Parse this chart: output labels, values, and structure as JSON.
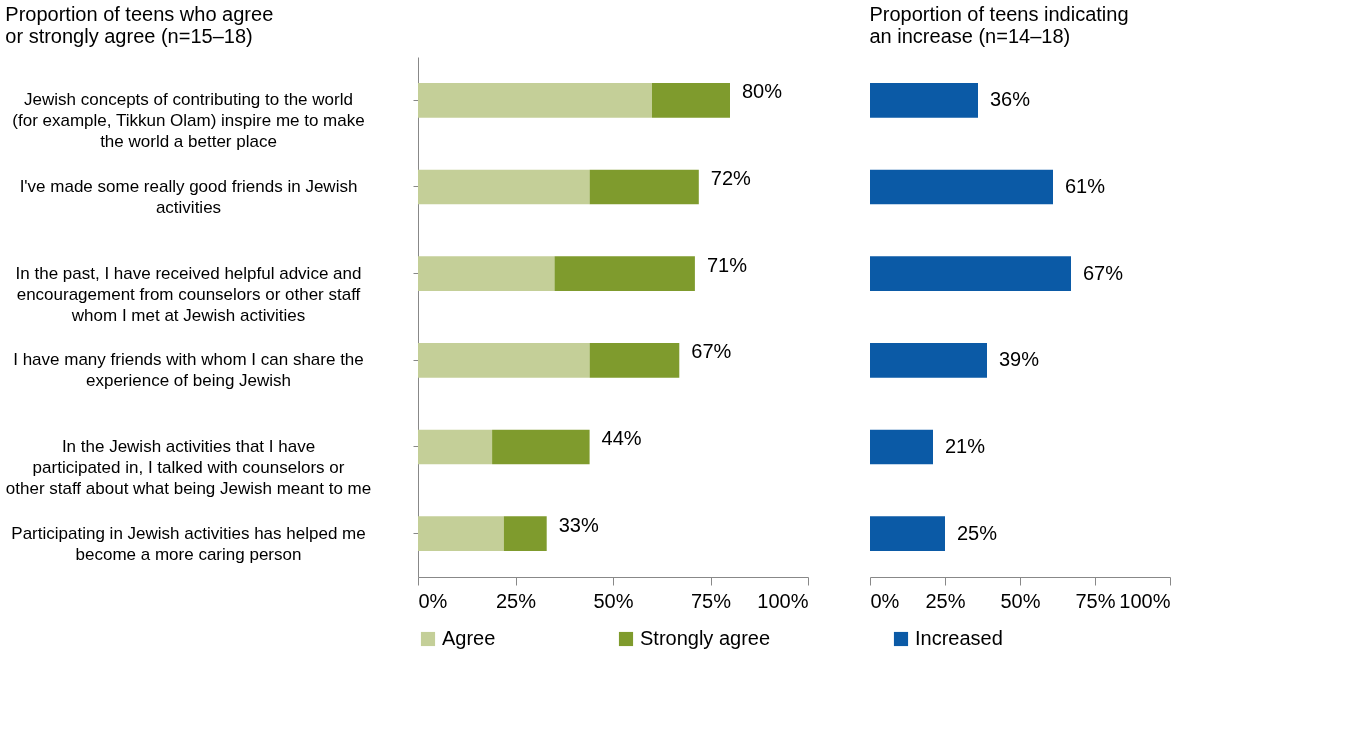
{
  "chart_data": [
    {
      "type": "bar",
      "orientation": "horizontal",
      "stacked": true,
      "title": "Proportion of teens who agree or strongly agree (n=15–18)",
      "categories": [
        "Jewish concepts of contributing to the world (for example, Tikkun Olam) inspire me to make the world a better place",
        "I've made some really good friends in Jewish activities",
        "In the past, I have received helpful advice and encouragement from counselors or other staff whom I met at Jewish activities",
        "I have many friends with whom I can share the experience of being Jewish",
        "In the Jewish activities that I have participated in, I talked with counselors or other staff about what being Jewish meant to me",
        "Participating in Jewish activities has helped me become a more caring person"
      ],
      "series": [
        {
          "name": "Agree",
          "color": "#c4cf98",
          "values": [
            60,
            44,
            35,
            44,
            19,
            22
          ]
        },
        {
          "name": "Strongly agree",
          "color": "#7f9b2d",
          "values": [
            20,
            28,
            36,
            23,
            25,
            11
          ]
        }
      ],
      "totals": [
        "80%",
        "72%",
        "71%",
        "67%",
        "44%",
        "33%"
      ],
      "xlim": [
        0,
        100
      ],
      "xticks": [
        {
          "value": 0,
          "label": "0%"
        },
        {
          "value": 25,
          "label": "25%"
        },
        {
          "value": 50,
          "label": "50%"
        },
        {
          "value": 75,
          "label": "75%"
        },
        {
          "value": 100,
          "label": "100%"
        }
      ],
      "legend": "bottom",
      "grid": false
    },
    {
      "type": "bar",
      "orientation": "horizontal",
      "title": "Proportion of teens indicating an increase (n=14–18)",
      "categories": [
        null,
        null,
        null,
        null,
        null,
        null
      ],
      "series": [
        {
          "name": "Increased",
          "color": "#0b5aa6",
          "values": [
            36,
            61,
            67,
            39,
            21,
            25
          ]
        }
      ],
      "value_labels": [
        "36%",
        "61%",
        "67%",
        "39%",
        "21%",
        "25%"
      ],
      "tick_labels": "x",
      "xlim": [
        0,
        100
      ],
      "xticks": [
        {
          "value": 0,
          "label": "0%"
        },
        {
          "value": 25,
          "label": "25%"
        },
        {
          "value": 50,
          "label": "50%"
        },
        {
          "value": 75,
          "label": "75%"
        },
        {
          "value": 100,
          "label": "100%"
        }
      ],
      "legend": "bottom",
      "grid": false
    }
  ]
}
